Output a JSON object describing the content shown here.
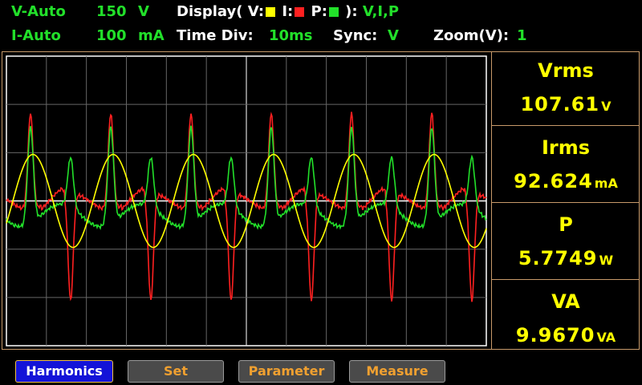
{
  "header": {
    "v_mode": "V-Auto",
    "v_range_value": "150",
    "v_range_unit": "V",
    "display_label": "Display( V:",
    "display_i_label": "I:",
    "display_p_label": "P:",
    "display_close": "):",
    "display_value": "V,I,P",
    "i_mode": "I-Auto",
    "i_range_value": "100",
    "i_range_unit": "mA",
    "time_div_label": "Time  Div:",
    "time_div_value": "10ms",
    "sync_label": "Sync:",
    "sync_value": "V",
    "zoom_label": "Zoom(V):",
    "zoom_value": "1"
  },
  "colors": {
    "voltage": "#ffff00",
    "current": "#ff2020",
    "power": "#22e02a",
    "grid": "#b0b0b0",
    "panel_text": "#ffff00"
  },
  "measurements": [
    {
      "label": "Vrms",
      "value": "107.61",
      "unit": "V"
    },
    {
      "label": "Irms",
      "value": "92.624",
      "unit": "mA"
    },
    {
      "label": "P",
      "value": "5.7749",
      "unit": "W"
    },
    {
      "label": "VA",
      "value": "9.9670",
      "unit": "VA"
    }
  ],
  "buttons": [
    {
      "label": "Harmonics",
      "active": true
    },
    {
      "label": "Set",
      "active": false
    },
    {
      "label": "Parameter",
      "active": false
    },
    {
      "label": "Measure",
      "active": false
    }
  ]
}
